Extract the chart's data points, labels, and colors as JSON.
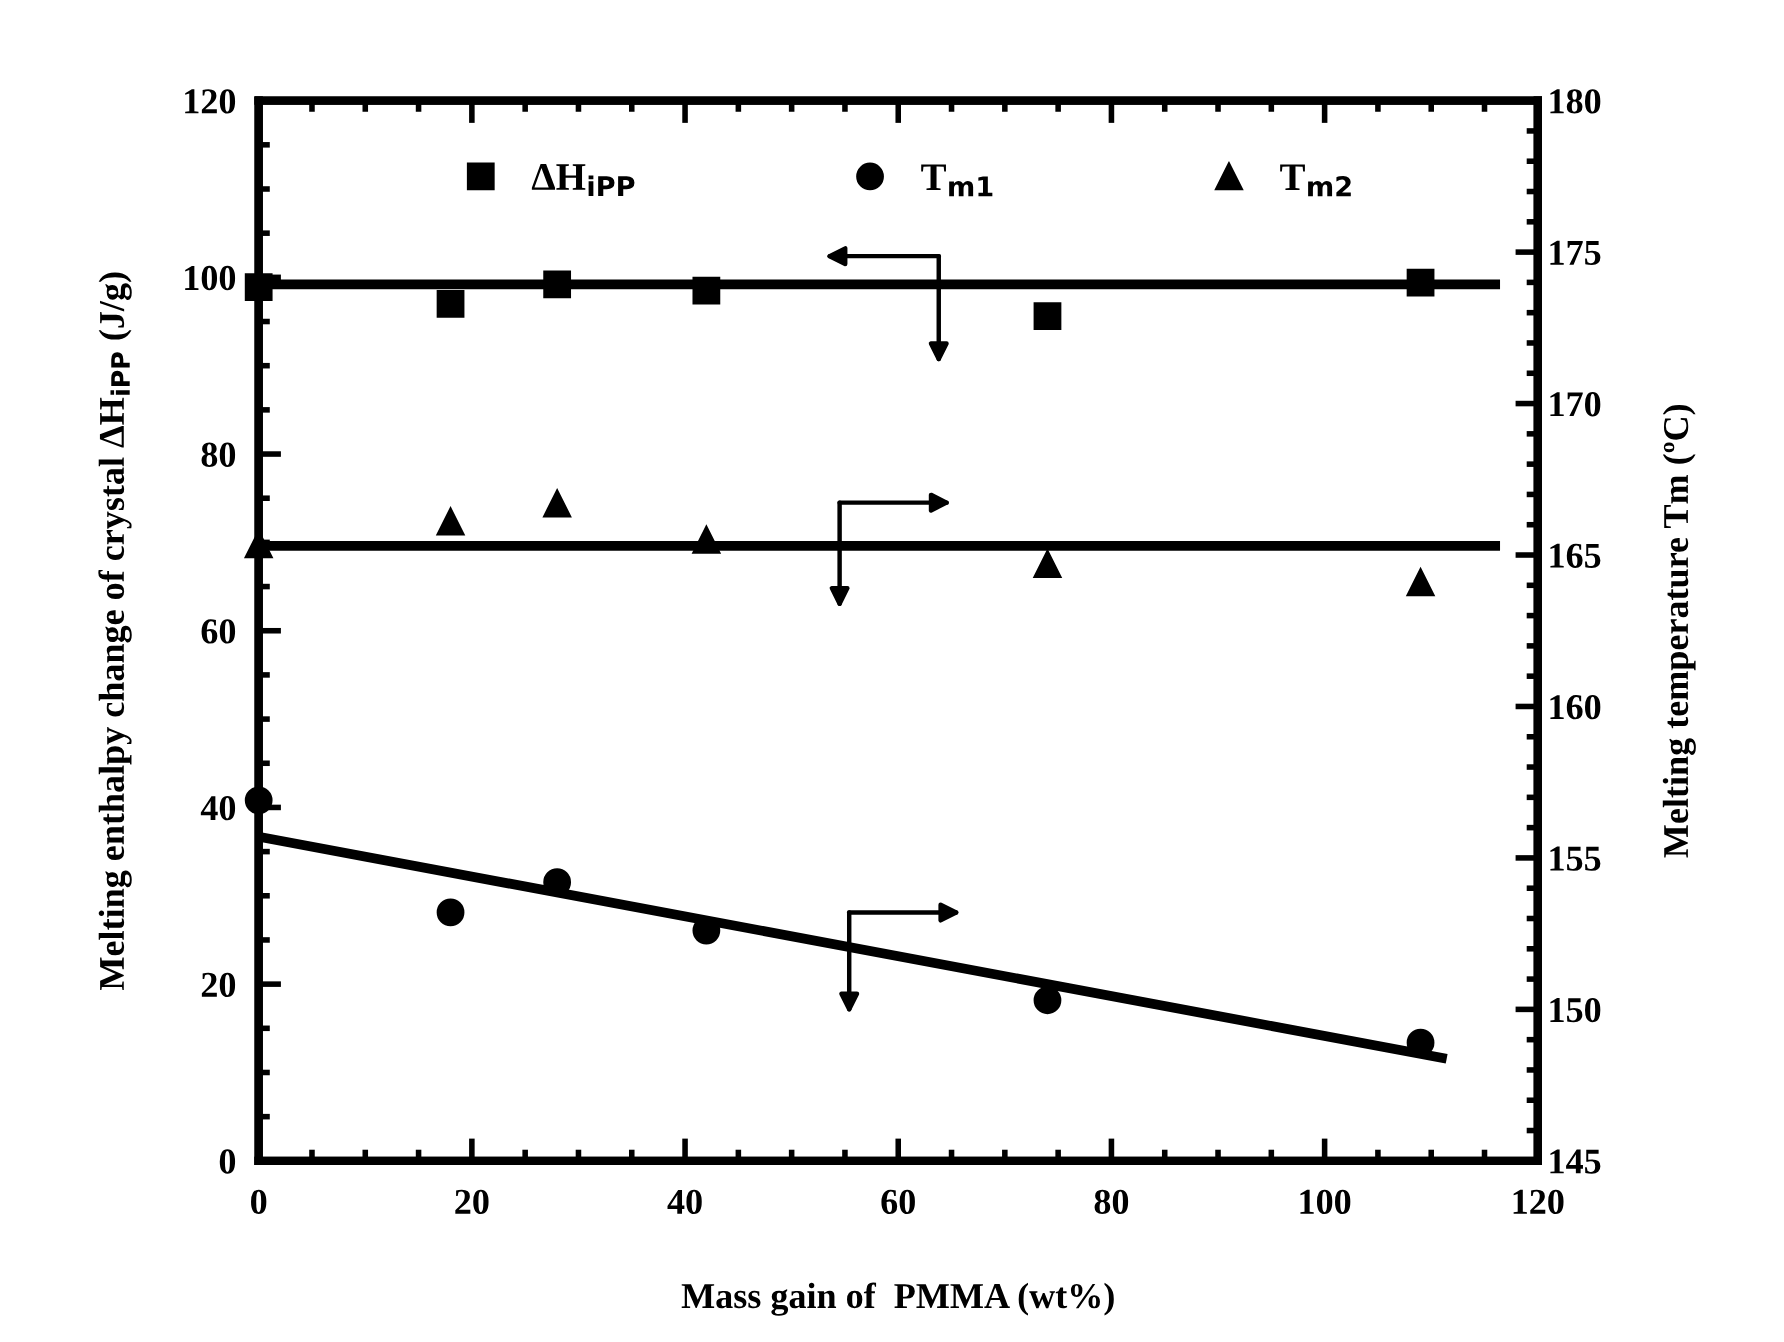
{
  "chart_data": {
    "type": "scatter",
    "xlabel": "Mass gain of  PMMA (wt%)",
    "ylabel": "Melting enthalpy change of crystal ΔH$_{iPP}$ (J/g)",
    "y2label": "Melting temperature Tm (ºC)",
    "x": [
      0,
      18,
      28,
      42,
      74,
      109
    ],
    "series": [
      {
        "name": "ΔH$_{iPP}$",
        "color": "#000000",
        "marker": "square",
        "values": [
          98.9,
          97,
          99.2,
          98.5,
          95.6,
          99.4
        ]
      },
      {
        "name": "T$_{m1}$",
        "color": "#000000",
        "marker": "circle",
        "axis": "y2",
        "values": [
          156.9,
          153.2,
          154.2,
          152.6,
          150.3,
          148.9
        ]
      },
      {
        "name": "T$_{m2}$",
        "color": "#000000",
        "marker": "triangle",
        "axis": "y2",
        "values": [
          165.35,
          166.1,
          166.7,
          165.5,
          164.7,
          164.1
        ]
      },
      {
        "type": "line",
        "color": "#000000",
        "x": [
          0,
          116
        ],
        "values": [
          99.2,
          99.2
        ]
      },
      {
        "type": "line",
        "color": "#000000",
        "axis": "y2",
        "x": [
          0,
          116
        ],
        "values": [
          165.3,
          165.3
        ]
      },
      {
        "type": "line",
        "color": "#000000",
        "axis": "y2",
        "x": [
          0,
          111
        ],
        "values": [
          155.7,
          148.4
        ]
      }
    ],
    "xlim": [
      0,
      120
    ],
    "xticks": [
      0,
      20,
      40,
      60,
      80,
      100,
      120
    ],
    "ylim": [
      0,
      120
    ],
    "yticks": [
      0,
      20,
      40,
      60,
      80,
      100,
      120
    ],
    "y2lim": [
      145,
      180
    ],
    "y2ticks": [
      145,
      150,
      155,
      160,
      165,
      170,
      175,
      180
    ],
    "legend": "top",
    "grid": false
  }
}
